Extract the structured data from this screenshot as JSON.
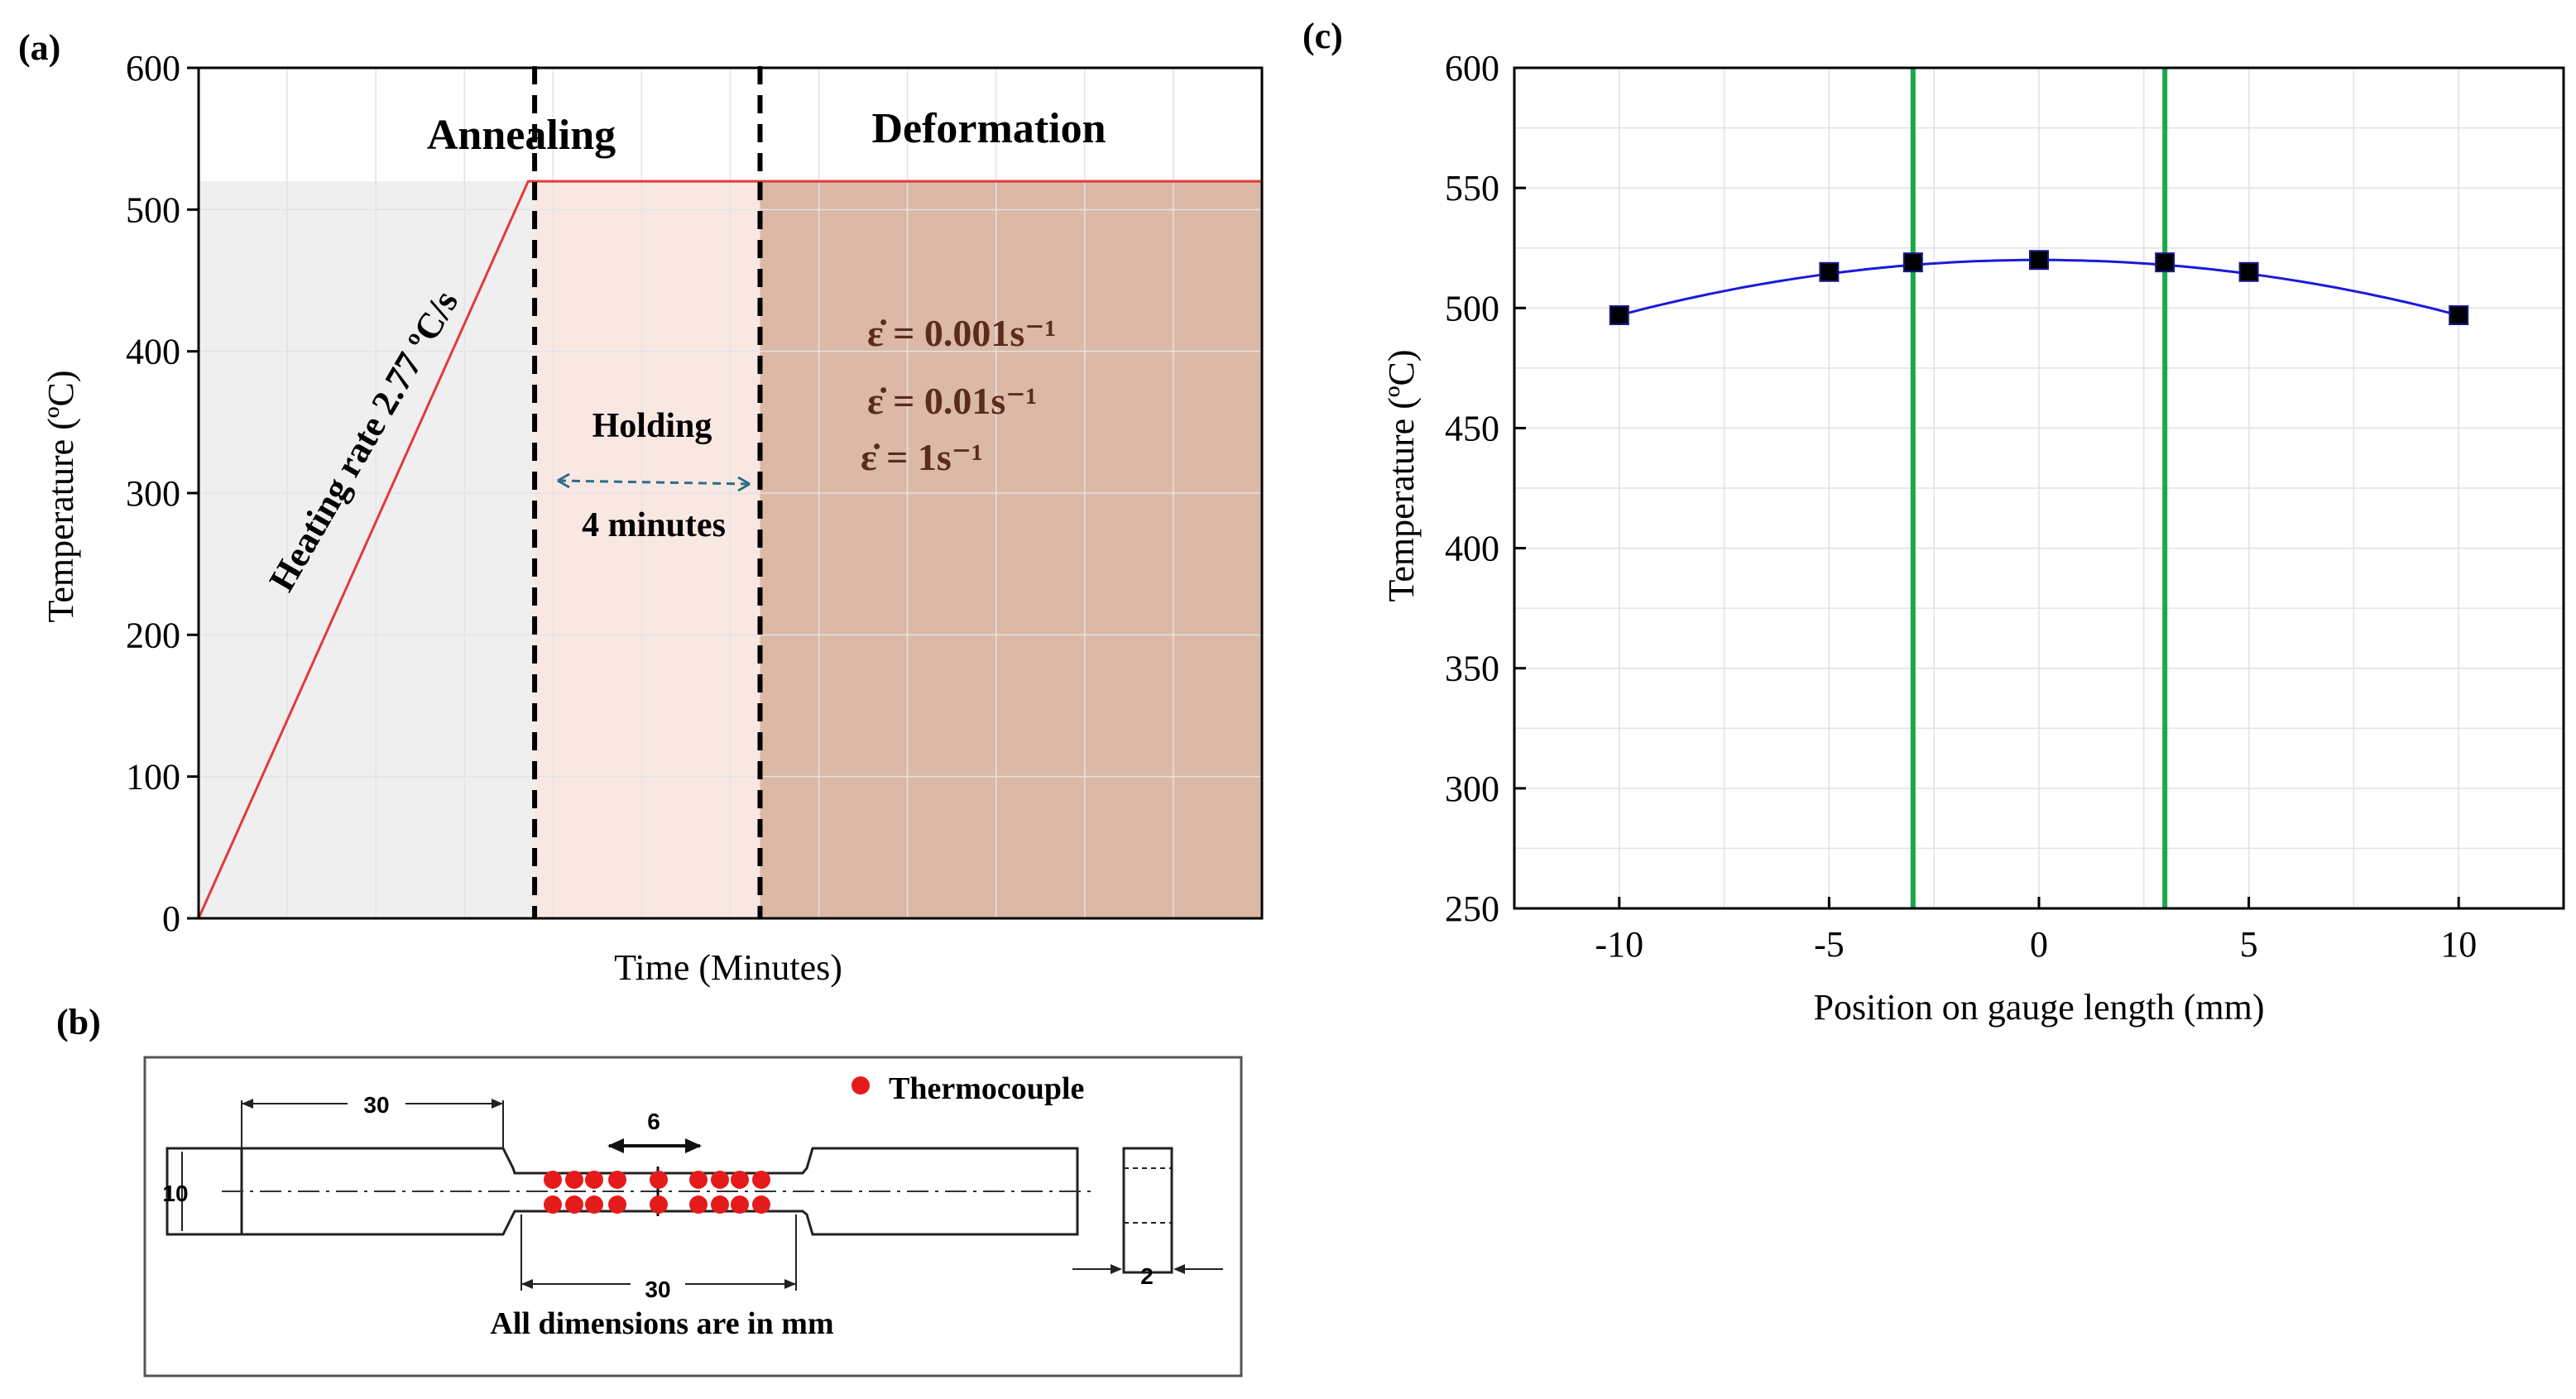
{
  "panels": {
    "a": "(a)",
    "b": "(b)",
    "c": "(c)"
  },
  "chart_data": [
    {
      "type": "line",
      "panel": "(a)",
      "xlabel": "Time (Minutes)",
      "ylabel": "Temperature (ºC)",
      "ylim": [
        0,
        600
      ],
      "yticks": [
        "0",
        "100",
        "200",
        "300",
        "400",
        "500",
        "600"
      ],
      "x_unit_note": "time axis unlabeled; normalized 0-1",
      "series": [
        {
          "name": "temperature profile",
          "x": [
            0.0,
            0.31,
            1.0
          ],
          "y": [
            0,
            520,
            520
          ],
          "color": "#e23a3a"
        }
      ],
      "stage_boundaries_x": [
        0.316,
        0.528
      ],
      "stages": {
        "annealing": "Annealing",
        "deformation": "Deformation"
      },
      "annotations": {
        "heating_rate": "Heating rate 2.77 ºC/s",
        "holding": "Holding",
        "holding_duration": "4 minutes",
        "strain_rates": [
          "ε̇ = 0.001s⁻¹",
          "ε̇ = 0.01s⁻¹",
          "ε̇ = 1s⁻¹"
        ]
      },
      "colors": {
        "heating_fill": "#efefef",
        "holding_fill": "#f9e8e2",
        "deformation_fill": "#dcb8a6",
        "line": "#e23a3a",
        "strain_text": "#5a2c1c"
      }
    },
    {
      "type": "scatter",
      "panel": "(c)",
      "xlabel": "Position on gauge length (mm)",
      "ylabel": "Temperature (ºC)",
      "xlim": [
        -12.5,
        12.5
      ],
      "ylim": [
        250,
        600
      ],
      "xticks": [
        -10,
        -5,
        0,
        5,
        10
      ],
      "xtick_labels": [
        "-10",
        "-5",
        "0",
        "5",
        "10"
      ],
      "yticks": [
        250,
        300,
        350,
        400,
        450,
        500,
        550,
        600
      ],
      "ytick_labels": [
        "250",
        "300",
        "350",
        "400",
        "450",
        "500",
        "550",
        "600"
      ],
      "series": [
        {
          "name": "measured",
          "x": [
            -10,
            -5,
            -3,
            0,
            3,
            5,
            10
          ],
          "y": [
            497,
            515,
            519,
            520,
            519,
            515,
            497
          ],
          "color": "#000000"
        }
      ],
      "fit_curve_color": "#1a1adb",
      "vertical_lines_x": [
        -3,
        3
      ],
      "vertical_line_color": "#1aa84a",
      "grid": true
    }
  ],
  "diagram_b": {
    "legend": "Thermocouple",
    "dims": {
      "grip_length": "30",
      "width": "10",
      "gauge_span": "6",
      "gauge_length": "30",
      "thickness": "2"
    },
    "caption": "All dimensions are in mm",
    "thermocouple_color": "#e51b1b"
  }
}
